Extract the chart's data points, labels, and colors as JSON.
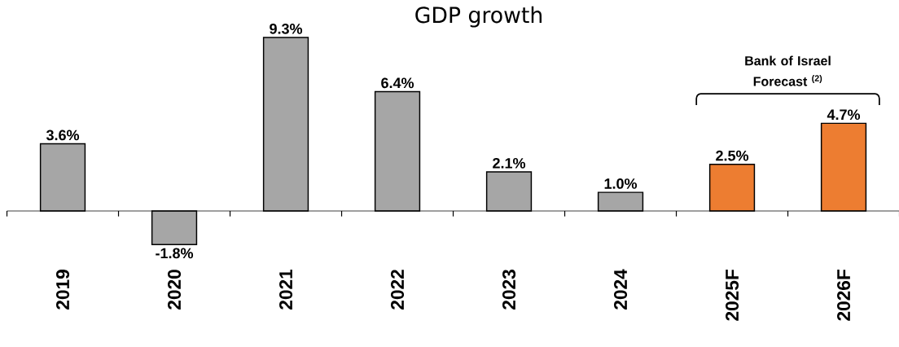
{
  "chart_data": {
    "type": "bar",
    "title": "GDP growth",
    "categories": [
      "2019",
      "2020",
      "2021",
      "2022",
      "2023",
      "2024",
      "2025F",
      "2026F"
    ],
    "values": [
      3.6,
      -1.8,
      9.3,
      6.4,
      2.1,
      1.0,
      2.5,
      4.7
    ],
    "value_labels": [
      "3.6%",
      "-1.8%",
      "9.3%",
      "6.4%",
      "2.1%",
      "1.0%",
      "2.5%",
      "4.7%"
    ],
    "colors": [
      "#a6a6a6",
      "#a6a6a6",
      "#a6a6a6",
      "#a6a6a6",
      "#a6a6a6",
      "#a6a6a6",
      "#ed7d31",
      "#ed7d31"
    ],
    "annotations": [
      "Bank of Israel Forecast $^{(2)}$"
    ],
    "grid": false
  }
}
